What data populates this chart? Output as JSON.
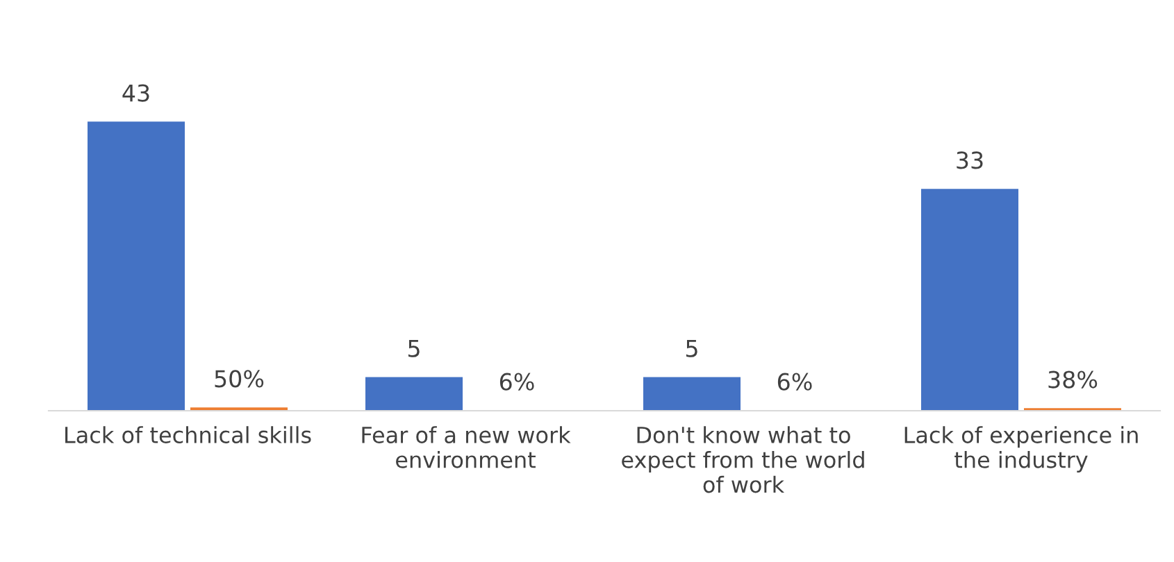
{
  "chart_data": {
    "type": "bar",
    "categories": [
      "Lack of technical skills",
      "Fear of a new work\nenvironment",
      "Don't know what to\nexpect from the world\nof work",
      "Lack of experience in\nthe industry"
    ],
    "series": [
      {
        "color": "#4472c4",
        "values": [
          43,
          5,
          5,
          33
        ],
        "value_labels": [
          "43",
          "5",
          "5",
          "33"
        ]
      },
      {
        "color": "#ed7d31",
        "values": [
          0.5,
          0.06,
          0.06,
          0.38
        ],
        "value_labels": [
          "50%",
          "6%",
          "6%",
          "38%"
        ]
      }
    ],
    "legend": false
  }
}
